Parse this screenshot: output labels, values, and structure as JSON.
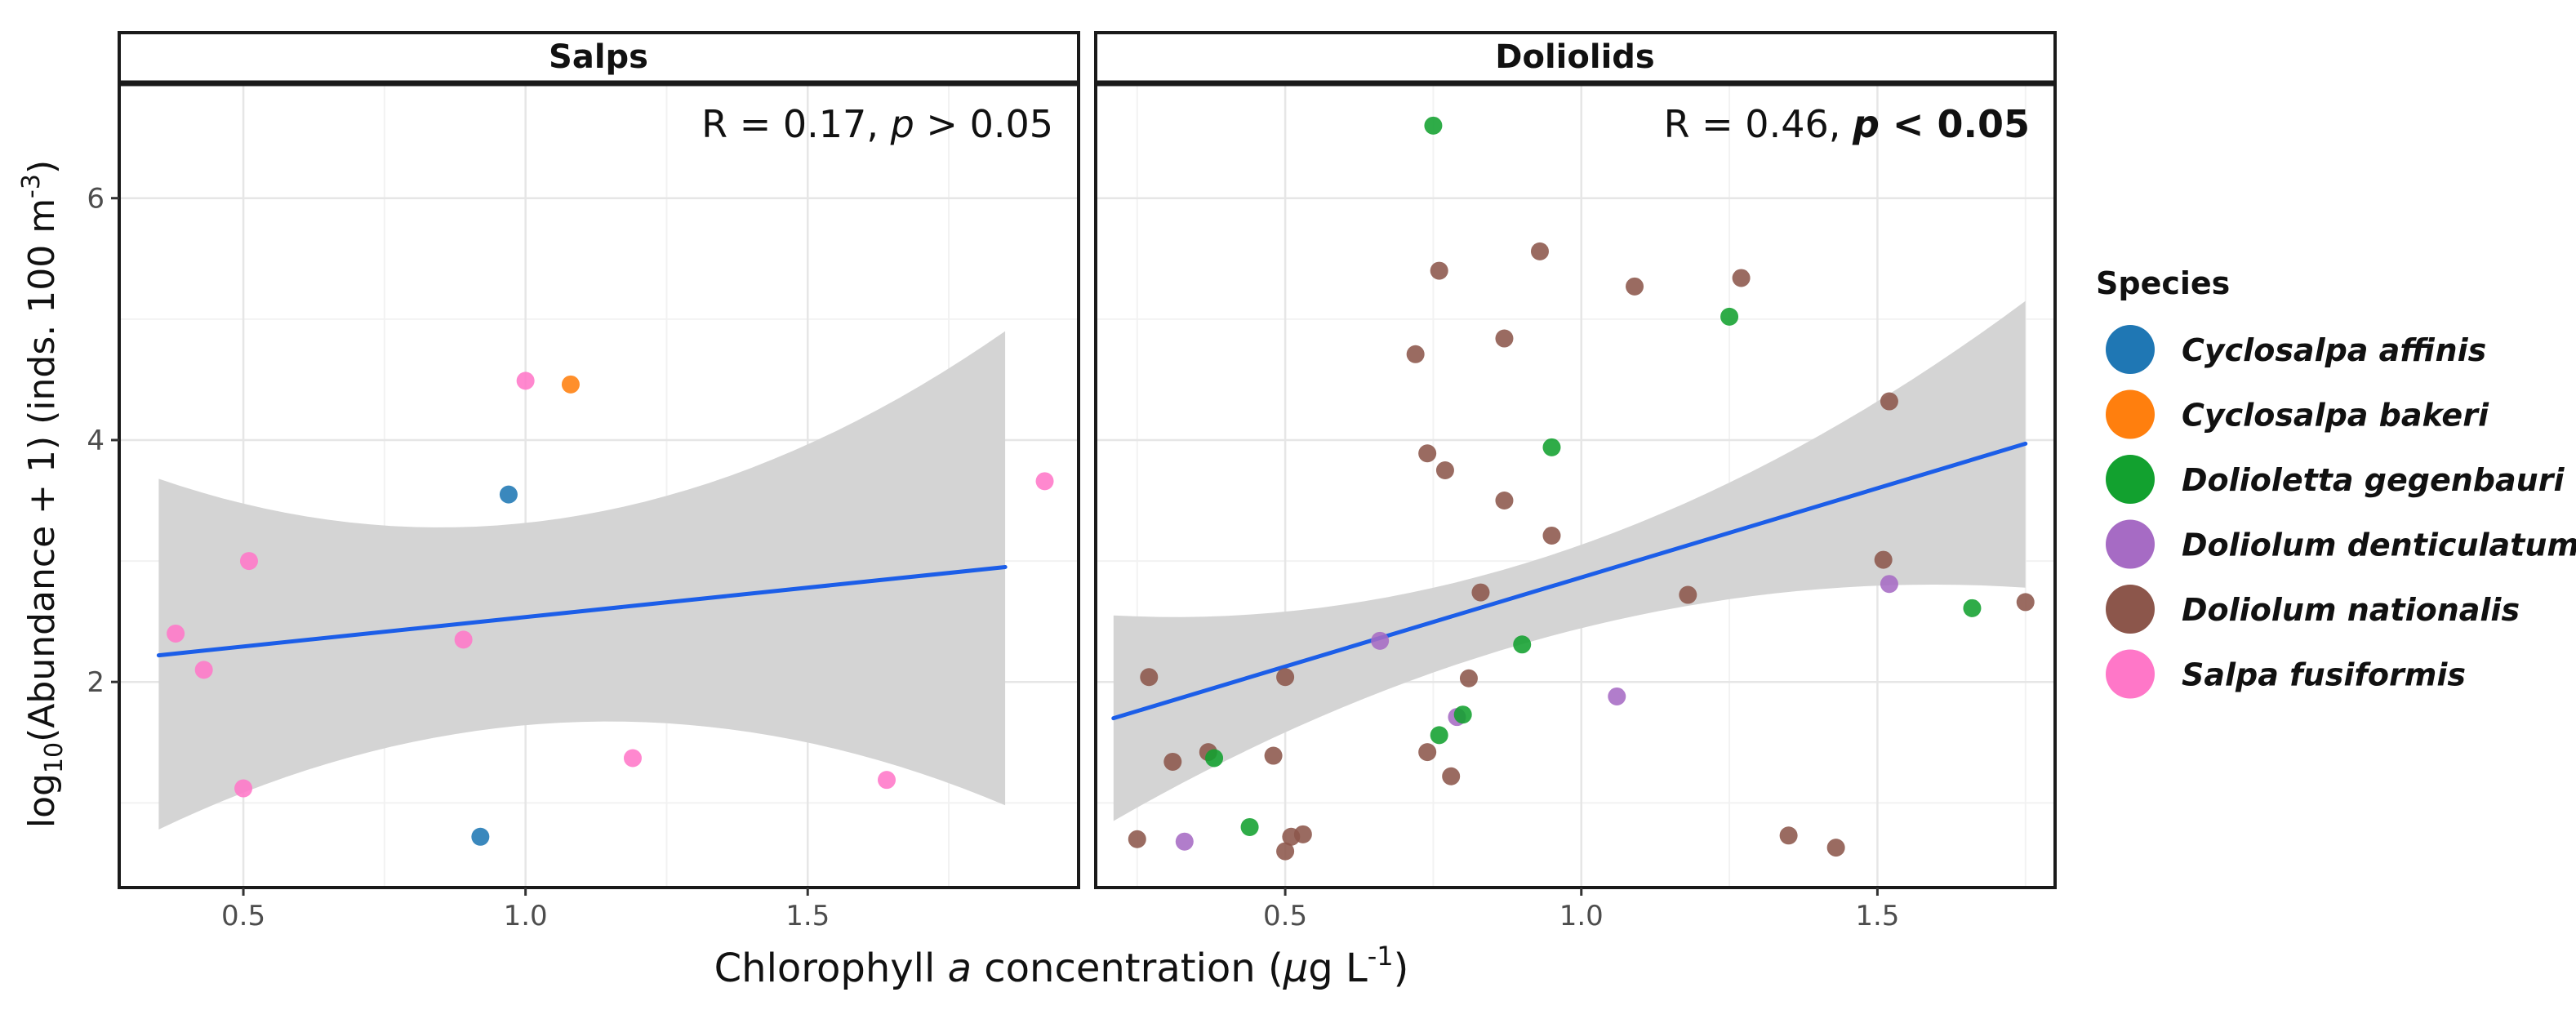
{
  "figure": {
    "y_axis_label": {
      "prefix": "log",
      "sub": "10",
      "main": "(Abundance + 1)  (inds.  100 m",
      "sup": "-3",
      "close": ")"
    },
    "x_axis_label": {
      "pre": "Chlorophyll ",
      "ital": "a",
      "mid": " concentration (",
      "mu": "μ",
      "g": "g L",
      "sup": "-1",
      "close": ")"
    },
    "legend": {
      "title": "Species",
      "items": [
        {
          "label": "Cyclosalpa affinis",
          "color": "#1f77b4"
        },
        {
          "label": "Cyclosalpa bakeri",
          "color": "#ff7f0e"
        },
        {
          "label": "Dolioletta gegenbauri",
          "color": "#12a12f"
        },
        {
          "label": "Doliolum denticulatum",
          "color": "#a66bc4"
        },
        {
          "label": "Doliolum nationalis",
          "color": "#8c564b"
        },
        {
          "label": "Salpa fusiformis",
          "color": "#ff77c8"
        }
      ]
    }
  },
  "chart_data": [
    {
      "type": "scatter",
      "title": "Salps",
      "stat": {
        "prefix": "R = 0.17, ",
        "p": "p",
        "suffix": " > 0.05",
        "bold": false
      },
      "xlim": [
        0.28,
        1.98
      ],
      "ylim": [
        0.3,
        6.95
      ],
      "xticks": [
        0.5,
        1.0,
        1.5
      ],
      "xtick_labels": [
        "0.5",
        "1.0",
        "1.5"
      ],
      "yticks": [
        2,
        4,
        6
      ],
      "ytick_labels": [
        "2",
        "4",
        "6"
      ],
      "regression": {
        "x": [
          0.35,
          1.85
        ],
        "y": [
          2.22,
          2.95
        ],
        "ci_upper": [
          3.68,
          3.38,
          4.9
        ],
        "ci_lower": [
          0.78,
          1.67,
          0.98
        ],
        "color": "#1c5ee8"
      },
      "points": [
        {
          "species": "Salpa fusiformis",
          "x": 0.38,
          "y": 2.4
        },
        {
          "species": "Salpa fusiformis",
          "x": 0.43,
          "y": 2.1
        },
        {
          "species": "Salpa fusiformis",
          "x": 0.5,
          "y": 1.12
        },
        {
          "species": "Salpa fusiformis",
          "x": 0.51,
          "y": 3.0
        },
        {
          "species": "Salpa fusiformis",
          "x": 0.89,
          "y": 2.35
        },
        {
          "species": "Cyclosalpa affinis",
          "x": 0.92,
          "y": 0.72
        },
        {
          "species": "Cyclosalpa affinis",
          "x": 0.97,
          "y": 3.55
        },
        {
          "species": "Salpa fusiformis",
          "x": 1.0,
          "y": 4.49
        },
        {
          "species": "Cyclosalpa bakeri",
          "x": 1.08,
          "y": 4.46
        },
        {
          "species": "Salpa fusiformis",
          "x": 1.19,
          "y": 1.37
        },
        {
          "species": "Salpa fusiformis",
          "x": 1.64,
          "y": 1.19
        },
        {
          "species": "Salpa fusiformis",
          "x": 1.92,
          "y": 3.66
        }
      ]
    },
    {
      "type": "scatter",
      "title": "Doliolids",
      "stat": {
        "prefix": "R = 0.46, ",
        "p": "p",
        "suffix": " < 0.05",
        "bold": true
      },
      "xlim": [
        0.18,
        1.8
      ],
      "ylim": [
        0.3,
        6.95
      ],
      "xticks": [
        0.5,
        1.0,
        1.5
      ],
      "xtick_labels": [
        "0.5",
        "1.0",
        "1.5"
      ],
      "yticks": [
        2,
        4,
        6
      ],
      "ytick_labels": [
        "2",
        "4",
        "6"
      ],
      "regression": {
        "x": [
          0.21,
          1.75
        ],
        "y": [
          1.7,
          3.97
        ],
        "ci_upper": [
          2.55,
          3.1,
          5.15
        ],
        "ci_lower": [
          0.85,
          2.42,
          2.78
        ],
        "color": "#1c5ee8"
      },
      "points": [
        {
          "species": "Doliolum nationalis",
          "x": 0.25,
          "y": 0.7
        },
        {
          "species": "Doliolum nationalis",
          "x": 0.27,
          "y": 2.04
        },
        {
          "species": "Doliolum nationalis",
          "x": 0.31,
          "y": 1.34
        },
        {
          "species": "Doliolum denticulatum",
          "x": 0.33,
          "y": 0.68
        },
        {
          "species": "Doliolum nationalis",
          "x": 0.37,
          "y": 1.42
        },
        {
          "species": "Dolioletta gegenbauri",
          "x": 0.38,
          "y": 1.37
        },
        {
          "species": "Dolioletta gegenbauri",
          "x": 0.44,
          "y": 0.8
        },
        {
          "species": "Doliolum nationalis",
          "x": 0.48,
          "y": 1.39
        },
        {
          "species": "Doliolum nationalis",
          "x": 0.5,
          "y": 2.04
        },
        {
          "species": "Doliolum nationalis",
          "x": 0.5,
          "y": 0.6
        },
        {
          "species": "Doliolum nationalis",
          "x": 0.51,
          "y": 0.72
        },
        {
          "species": "Doliolum nationalis",
          "x": 0.53,
          "y": 0.74
        },
        {
          "species": "Doliolum denticulatum",
          "x": 0.66,
          "y": 2.34
        },
        {
          "species": "Doliolum nationalis",
          "x": 0.72,
          "y": 4.71
        },
        {
          "species": "Doliolum nationalis",
          "x": 0.74,
          "y": 3.89
        },
        {
          "species": "Doliolum nationalis",
          "x": 0.74,
          "y": 1.42
        },
        {
          "species": "Dolioletta gegenbauri",
          "x": 0.75,
          "y": 6.6
        },
        {
          "species": "Dolioletta gegenbauri",
          "x": 0.76,
          "y": 1.56
        },
        {
          "species": "Doliolum nationalis",
          "x": 0.76,
          "y": 5.4
        },
        {
          "species": "Doliolum nationalis",
          "x": 0.77,
          "y": 3.75
        },
        {
          "species": "Doliolum nationalis",
          "x": 0.78,
          "y": 1.22
        },
        {
          "species": "Doliolum denticulatum",
          "x": 0.79,
          "y": 1.71
        },
        {
          "species": "Dolioletta gegenbauri",
          "x": 0.8,
          "y": 1.73
        },
        {
          "species": "Doliolum nationalis",
          "x": 0.81,
          "y": 2.03
        },
        {
          "species": "Doliolum nationalis",
          "x": 0.83,
          "y": 2.74
        },
        {
          "species": "Doliolum nationalis",
          "x": 0.87,
          "y": 4.84
        },
        {
          "species": "Doliolum nationalis",
          "x": 0.87,
          "y": 3.5
        },
        {
          "species": "Dolioletta gegenbauri",
          "x": 0.9,
          "y": 2.31
        },
        {
          "species": "Doliolum nationalis",
          "x": 0.93,
          "y": 5.56
        },
        {
          "species": "Dolioletta gegenbauri",
          "x": 0.95,
          "y": 3.94
        },
        {
          "species": "Doliolum nationalis",
          "x": 0.95,
          "y": 3.21
        },
        {
          "species": "Doliolum denticulatum",
          "x": 1.06,
          "y": 1.88
        },
        {
          "species": "Doliolum nationalis",
          "x": 1.09,
          "y": 5.27
        },
        {
          "species": "Doliolum nationalis",
          "x": 1.18,
          "y": 2.72
        },
        {
          "species": "Dolioletta gegenbauri",
          "x": 1.25,
          "y": 5.02
        },
        {
          "species": "Doliolum nationalis",
          "x": 1.27,
          "y": 5.34
        },
        {
          "species": "Doliolum nationalis",
          "x": 1.35,
          "y": 0.73
        },
        {
          "species": "Doliolum nationalis",
          "x": 1.43,
          "y": 0.63
        },
        {
          "species": "Doliolum nationalis",
          "x": 1.51,
          "y": 3.01
        },
        {
          "species": "Doliolum denticulatum",
          "x": 1.52,
          "y": 2.81
        },
        {
          "species": "Doliolum nationalis",
          "x": 1.52,
          "y": 4.32
        },
        {
          "species": "Dolioletta gegenbauri",
          "x": 1.66,
          "y": 2.61
        },
        {
          "species": "Doliolum nationalis",
          "x": 1.75,
          "y": 2.66
        }
      ]
    }
  ]
}
